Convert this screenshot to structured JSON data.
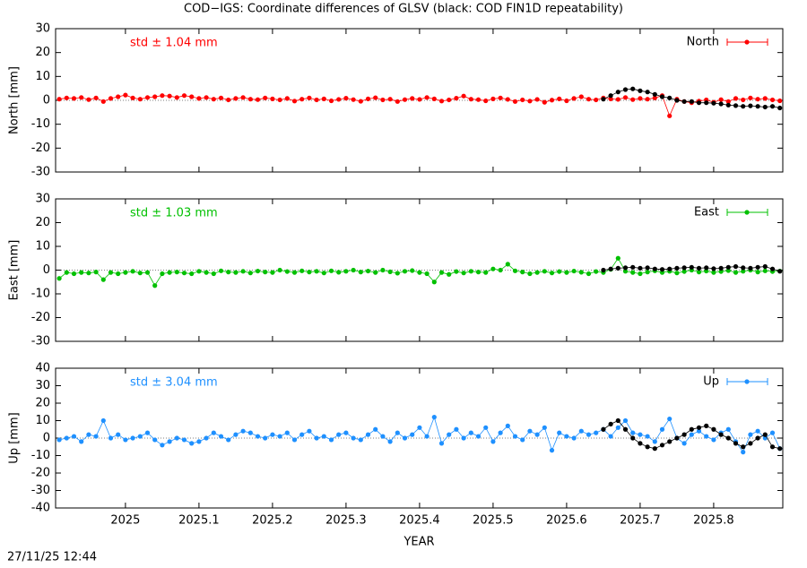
{
  "title": "COD−IGS: Coordinate differences of GLSV (black: COD FIN1D repeatability)",
  "footer": "27/11/25 12:44",
  "chart_data": [
    {
      "type": "line",
      "ylabel": "North [mm]",
      "annotation": "std ± 1.04 mm",
      "annotation_color": "#ff0000",
      "xlim": [
        2024.905,
        2025.894
      ],
      "xticks": [
        2025,
        2025.1,
        2025.2,
        2025.3,
        2025.4,
        2025.5,
        2025.6,
        2025.7,
        2025.8
      ],
      "show_xtick_labels": false,
      "ylim": [
        -30,
        30
      ],
      "yticks": [
        -30,
        -20,
        -10,
        0,
        10,
        20,
        30
      ],
      "series": [
        {
          "name": "North",
          "color": "#ff0000",
          "x": [
            2024.91,
            2024.92,
            2024.93,
            2024.94,
            2024.95,
            2024.96,
            2024.97,
            2024.98,
            2024.99,
            2025.0,
            2025.01,
            2025.02,
            2025.03,
            2025.04,
            2025.05,
            2025.06,
            2025.07,
            2025.08,
            2025.09,
            2025.1,
            2025.11,
            2025.12,
            2025.13,
            2025.14,
            2025.15,
            2025.16,
            2025.17,
            2025.18,
            2025.19,
            2025.2,
            2025.21,
            2025.22,
            2025.23,
            2025.24,
            2025.25,
            2025.26,
            2025.27,
            2025.28,
            2025.29,
            2025.3,
            2025.31,
            2025.32,
            2025.33,
            2025.34,
            2025.35,
            2025.36,
            2025.37,
            2025.38,
            2025.39,
            2025.4,
            2025.41,
            2025.42,
            2025.43,
            2025.44,
            2025.45,
            2025.46,
            2025.47,
            2025.48,
            2025.49,
            2025.5,
            2025.51,
            2025.52,
            2025.53,
            2025.54,
            2025.55,
            2025.56,
            2025.57,
            2025.58,
            2025.59,
            2025.6,
            2025.61,
            2025.62,
            2025.63,
            2025.64,
            2025.65,
            2025.66,
            2025.67,
            2025.68,
            2025.69,
            2025.7,
            2025.71,
            2025.72,
            2025.73,
            2025.74,
            2025.75,
            2025.76,
            2025.77,
            2025.78,
            2025.79,
            2025.8,
            2025.81,
            2025.82,
            2025.83,
            2025.84,
            2025.85,
            2025.86,
            2025.87,
            2025.88,
            2025.89
          ],
          "values": [
            0.5,
            1,
            0.8,
            1.2,
            0.3,
            1,
            -0.5,
            0.8,
            1.5,
            2.2,
            1,
            0.5,
            1.2,
            1.5,
            2,
            1.8,
            1.2,
            2,
            1.5,
            0.8,
            1.2,
            0.5,
            1,
            0.2,
            0.8,
            1.2,
            0.5,
            0.3,
            1,
            0.6,
            0.2,
            0.8,
            -0.3,
            0.5,
            1,
            0.2,
            0.6,
            -0.2,
            0.4,
            0.9,
            0.3,
            -0.4,
            0.6,
            1.1,
            0.2,
            0.5,
            -0.5,
            0.3,
            0.8,
            0.4,
            1.2,
            0.6,
            -0.3,
            0.2,
            0.9,
            1.8,
            0.5,
            0.3,
            -0.2,
            0.6,
            1,
            0.4,
            -0.5,
            0.2,
            -0.3,
            0.4,
            -0.8,
            0.1,
            0.6,
            -0.2,
            0.8,
            1.5,
            0.5,
            0.2,
            1,
            0.6,
            0.4,
            1.2,
            0.3,
            0.8,
            0.5,
            1,
            2,
            -6.5,
            0.5,
            -0.5,
            -1,
            -0.3,
            0.2,
            -0.8,
            0.3,
            -0.5,
            0.8,
            0.2,
            1,
            0.5,
            0.8,
            0.2,
            -0.2
          ]
        },
        {
          "color": "#000000",
          "x": [
            2025.65,
            2025.66,
            2025.67,
            2025.68,
            2025.69,
            2025.7,
            2025.71,
            2025.72,
            2025.73,
            2025.74,
            2025.75,
            2025.76,
            2025.77,
            2025.78,
            2025.79,
            2025.8,
            2025.81,
            2025.82,
            2025.83,
            2025.84,
            2025.85,
            2025.86,
            2025.87,
            2025.88,
            2025.89
          ],
          "values": [
            0.5,
            2,
            3.5,
            4.5,
            4.8,
            4,
            3.5,
            2.5,
            1.5,
            1,
            0,
            -0.5,
            -0.5,
            -1,
            -1,
            -1.2,
            -1.5,
            -2,
            -2.2,
            -2.5,
            -2.3,
            -2.5,
            -2.8,
            -2.5,
            -3.2
          ]
        }
      ]
    },
    {
      "type": "line",
      "ylabel": "East [mm]",
      "annotation": "std ± 1.03 mm",
      "annotation_color": "#00c000",
      "xlim": [
        2024.905,
        2025.894
      ],
      "xticks": [
        2025,
        2025.1,
        2025.2,
        2025.3,
        2025.4,
        2025.5,
        2025.6,
        2025.7,
        2025.8
      ],
      "show_xtick_labels": false,
      "ylim": [
        -30,
        30
      ],
      "yticks": [
        -30,
        -20,
        -10,
        0,
        10,
        20,
        30
      ],
      "series": [
        {
          "name": "East",
          "color": "#00c000",
          "x": [
            2024.91,
            2024.92,
            2024.93,
            2024.94,
            2024.95,
            2024.96,
            2024.97,
            2024.98,
            2024.99,
            2025.0,
            2025.01,
            2025.02,
            2025.03,
            2025.04,
            2025.05,
            2025.06,
            2025.07,
            2025.08,
            2025.09,
            2025.1,
            2025.11,
            2025.12,
            2025.13,
            2025.14,
            2025.15,
            2025.16,
            2025.17,
            2025.18,
            2025.19,
            2025.2,
            2025.21,
            2025.22,
            2025.23,
            2025.24,
            2025.25,
            2025.26,
            2025.27,
            2025.28,
            2025.29,
            2025.3,
            2025.31,
            2025.32,
            2025.33,
            2025.34,
            2025.35,
            2025.36,
            2025.37,
            2025.38,
            2025.39,
            2025.4,
            2025.41,
            2025.42,
            2025.43,
            2025.44,
            2025.45,
            2025.46,
            2025.47,
            2025.48,
            2025.49,
            2025.5,
            2025.51,
            2025.52,
            2025.53,
            2025.54,
            2025.55,
            2025.56,
            2025.57,
            2025.58,
            2025.59,
            2025.6,
            2025.61,
            2025.62,
            2025.63,
            2025.64,
            2025.65,
            2025.66,
            2025.67,
            2025.68,
            2025.69,
            2025.7,
            2025.71,
            2025.72,
            2025.73,
            2025.74,
            2025.75,
            2025.76,
            2025.77,
            2025.78,
            2025.79,
            2025.8,
            2025.81,
            2025.82,
            2025.83,
            2025.84,
            2025.85,
            2025.86,
            2025.87,
            2025.88,
            2025.89
          ],
          "values": [
            -3.5,
            -1,
            -1.5,
            -1,
            -1.2,
            -0.8,
            -4,
            -1,
            -1.5,
            -1,
            -0.5,
            -1.2,
            -1,
            -6.5,
            -1.5,
            -1,
            -0.8,
            -1.2,
            -1.5,
            -0.5,
            -1,
            -1.5,
            -0.3,
            -0.8,
            -1,
            -0.5,
            -1.2,
            -0.4,
            -0.8,
            -1,
            0,
            -0.6,
            -1,
            -0.3,
            -0.8,
            -0.5,
            -1.2,
            -0.3,
            -0.9,
            -0.5,
            0,
            -0.8,
            -0.4,
            -1,
            0,
            -0.7,
            -1.3,
            -0.5,
            -0.2,
            -1,
            -1.5,
            -5,
            -1,
            -1.8,
            -0.6,
            -1.2,
            -0.5,
            -0.8,
            -1,
            0.5,
            0,
            2.5,
            -0.3,
            -0.8,
            -1.5,
            -1,
            -0.5,
            -1.2,
            -0.6,
            -1,
            -0.4,
            -0.9,
            -1.5,
            -0.6,
            -1,
            0.3,
            5,
            -0.5,
            -1,
            -1.5,
            -0.8,
            -0.3,
            -1,
            -0.5,
            -1.2,
            -0.6,
            0,
            -0.8,
            -0.4,
            -1,
            -0.6,
            -0.2,
            -1,
            -0.5,
            0,
            -0.8,
            -0.3,
            -0.6,
            -0.4
          ]
        },
        {
          "color": "#000000",
          "x": [
            2025.65,
            2025.66,
            2025.67,
            2025.68,
            2025.69,
            2025.7,
            2025.71,
            2025.72,
            2025.73,
            2025.74,
            2025.75,
            2025.76,
            2025.77,
            2025.78,
            2025.79,
            2025.8,
            2025.81,
            2025.82,
            2025.83,
            2025.84,
            2025.85,
            2025.86,
            2025.87,
            2025.88,
            2025.89
          ],
          "values": [
            0,
            0.5,
            0.8,
            1,
            1.2,
            0.8,
            1,
            0.5,
            0.3,
            0.5,
            0.8,
            1,
            1.2,
            0.8,
            1,
            0.6,
            0.8,
            1.2,
            1.5,
            1,
            0.8,
            1.2,
            1.5,
            0.5,
            -0.5
          ]
        }
      ]
    },
    {
      "type": "line",
      "ylabel": "Up [mm]",
      "annotation": "std ± 3.04 mm",
      "annotation_color": "#1e90ff",
      "xlabel": "YEAR",
      "xlim": [
        2024.905,
        2025.894
      ],
      "xticks": [
        2025,
        2025.1,
        2025.2,
        2025.3,
        2025.4,
        2025.5,
        2025.6,
        2025.7,
        2025.8
      ],
      "show_xtick_labels": true,
      "ylim": [
        -40,
        40
      ],
      "yticks": [
        -40,
        -30,
        -20,
        -10,
        0,
        10,
        20,
        30,
        40
      ],
      "series": [
        {
          "name": "Up",
          "color": "#1e90ff",
          "x": [
            2024.91,
            2024.92,
            2024.93,
            2024.94,
            2024.95,
            2024.96,
            2024.97,
            2024.98,
            2024.99,
            2025.0,
            2025.01,
            2025.02,
            2025.03,
            2025.04,
            2025.05,
            2025.06,
            2025.07,
            2025.08,
            2025.09,
            2025.1,
            2025.11,
            2025.12,
            2025.13,
            2025.14,
            2025.15,
            2025.16,
            2025.17,
            2025.18,
            2025.19,
            2025.2,
            2025.21,
            2025.22,
            2025.23,
            2025.24,
            2025.25,
            2025.26,
            2025.27,
            2025.28,
            2025.29,
            2025.3,
            2025.31,
            2025.32,
            2025.33,
            2025.34,
            2025.35,
            2025.36,
            2025.37,
            2025.38,
            2025.39,
            2025.4,
            2025.41,
            2025.42,
            2025.43,
            2025.44,
            2025.45,
            2025.46,
            2025.47,
            2025.48,
            2025.49,
            2025.5,
            2025.51,
            2025.52,
            2025.53,
            2025.54,
            2025.55,
            2025.56,
            2025.57,
            2025.58,
            2025.59,
            2025.6,
            2025.61,
            2025.62,
            2025.63,
            2025.64,
            2025.65,
            2025.66,
            2025.67,
            2025.68,
            2025.69,
            2025.7,
            2025.71,
            2025.72,
            2025.73,
            2025.74,
            2025.75,
            2025.76,
            2025.77,
            2025.78,
            2025.79,
            2025.8,
            2025.81,
            2025.82,
            2025.83,
            2025.84,
            2025.85,
            2025.86,
            2025.87,
            2025.88,
            2025.89
          ],
          "values": [
            -1,
            0,
            1,
            -2,
            2,
            1,
            10,
            0,
            2,
            -1,
            0,
            1,
            3,
            -1,
            -4,
            -2,
            0,
            -1,
            -3,
            -2,
            0,
            3,
            1,
            -1,
            2,
            4,
            3,
            1,
            0,
            2,
            1,
            3,
            -1,
            2,
            4,
            0,
            1,
            -1,
            2,
            3,
            0,
            -1,
            2,
            5,
            1,
            -2,
            3,
            0,
            2,
            6,
            1,
            12,
            -3,
            2,
            5,
            0,
            3,
            1,
            6,
            -2,
            3,
            7,
            1,
            -1,
            4,
            2,
            6,
            -7,
            3,
            1,
            0,
            4,
            2,
            3,
            5,
            1,
            6,
            10,
            3,
            2,
            1,
            -2,
            5,
            11,
            0,
            -3,
            2,
            4,
            1,
            -1,
            3,
            5,
            -2,
            -8,
            2,
            4,
            0,
            3,
            -6
          ]
        },
        {
          "color": "#000000",
          "x": [
            2025.65,
            2025.66,
            2025.67,
            2025.68,
            2025.69,
            2025.7,
            2025.71,
            2025.72,
            2025.73,
            2025.74,
            2025.75,
            2025.76,
            2025.77,
            2025.78,
            2025.79,
            2025.8,
            2025.81,
            2025.82,
            2025.83,
            2025.84,
            2025.85,
            2025.86,
            2025.87,
            2025.88,
            2025.89
          ],
          "values": [
            5,
            8,
            10,
            5,
            0,
            -3,
            -5,
            -6,
            -4,
            -2,
            0,
            2,
            5,
            6,
            7,
            5,
            2,
            0,
            -3,
            -5,
            -3,
            0,
            2,
            -5,
            -6
          ]
        }
      ]
    }
  ]
}
